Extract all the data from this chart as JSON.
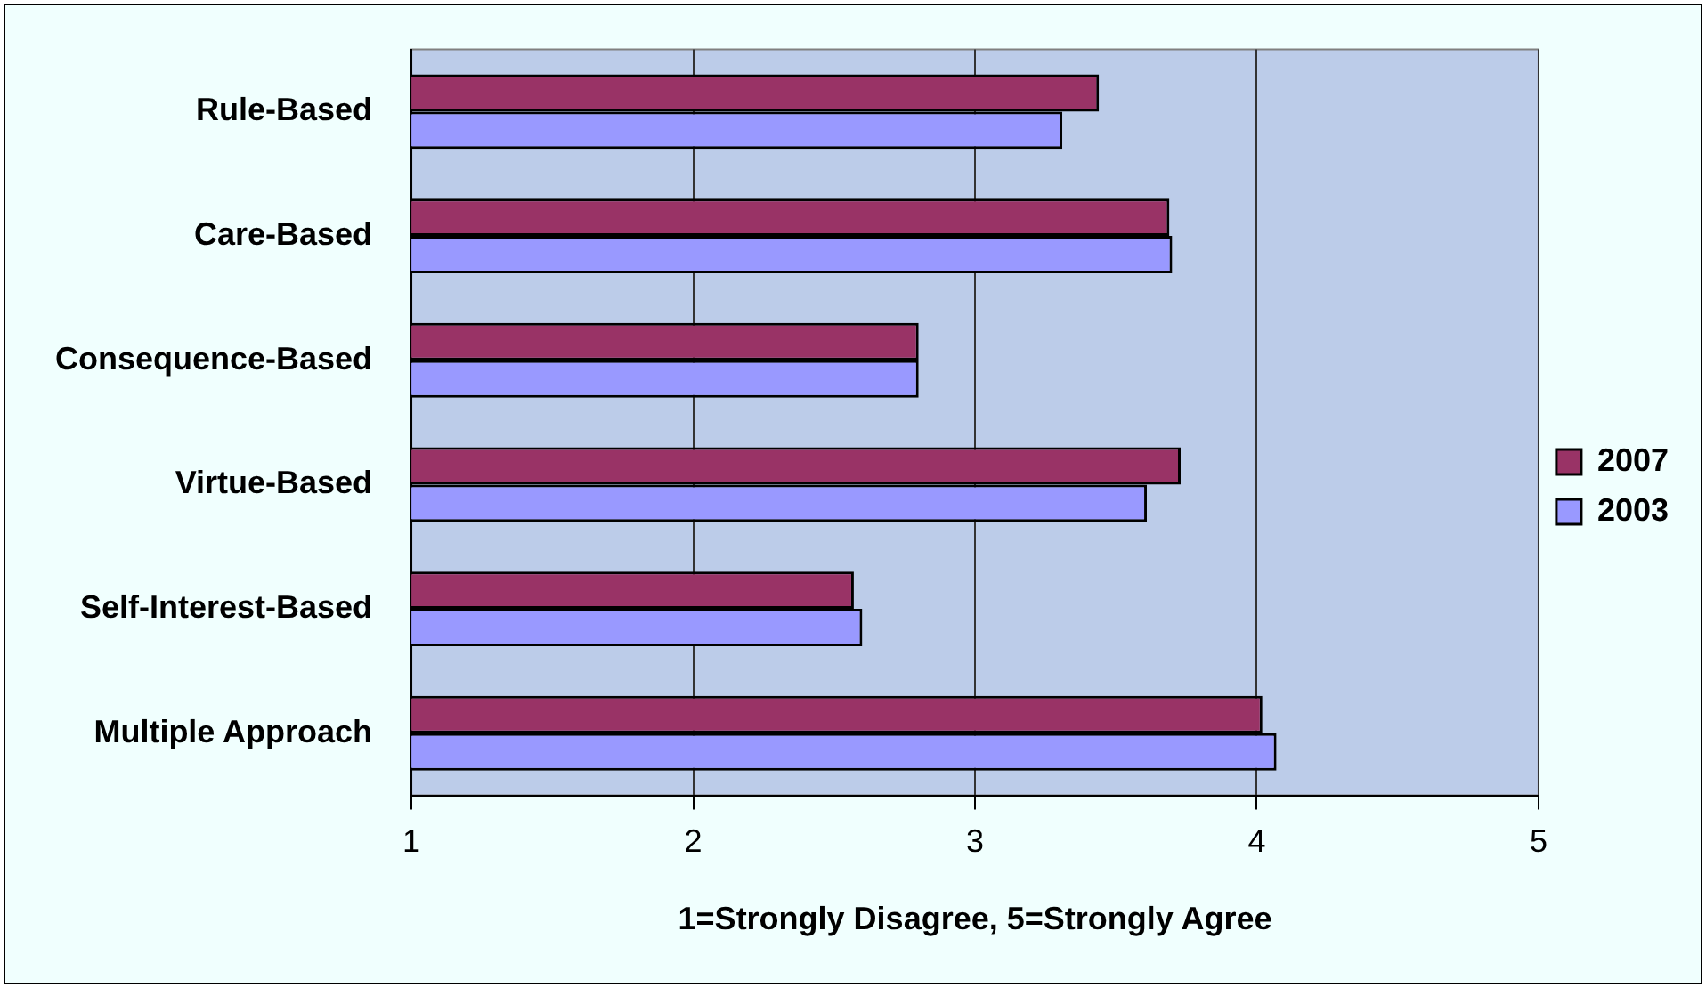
{
  "chart_data": {
    "type": "bar",
    "orientation": "horizontal",
    "categories": [
      "Rule-Based",
      "Care-Based",
      "Consequence-Based",
      "Virtue-Based",
      "Self-Interest-Based",
      "Multiple Approach"
    ],
    "series": [
      {
        "name": "2007",
        "color": "#993366",
        "values": [
          3.44,
          3.69,
          2.8,
          3.73,
          2.57,
          4.02
        ]
      },
      {
        "name": "2003",
        "color": "#9999ff",
        "values": [
          3.31,
          3.7,
          2.8,
          3.61,
          2.6,
          4.07
        ]
      }
    ],
    "xlim": [
      1,
      5
    ],
    "xticks": [
      1,
      2,
      3,
      4,
      5
    ],
    "xlabel": "1=Strongly Disagree, 5=Strongly Agree",
    "grid": "x",
    "legend": "right"
  }
}
